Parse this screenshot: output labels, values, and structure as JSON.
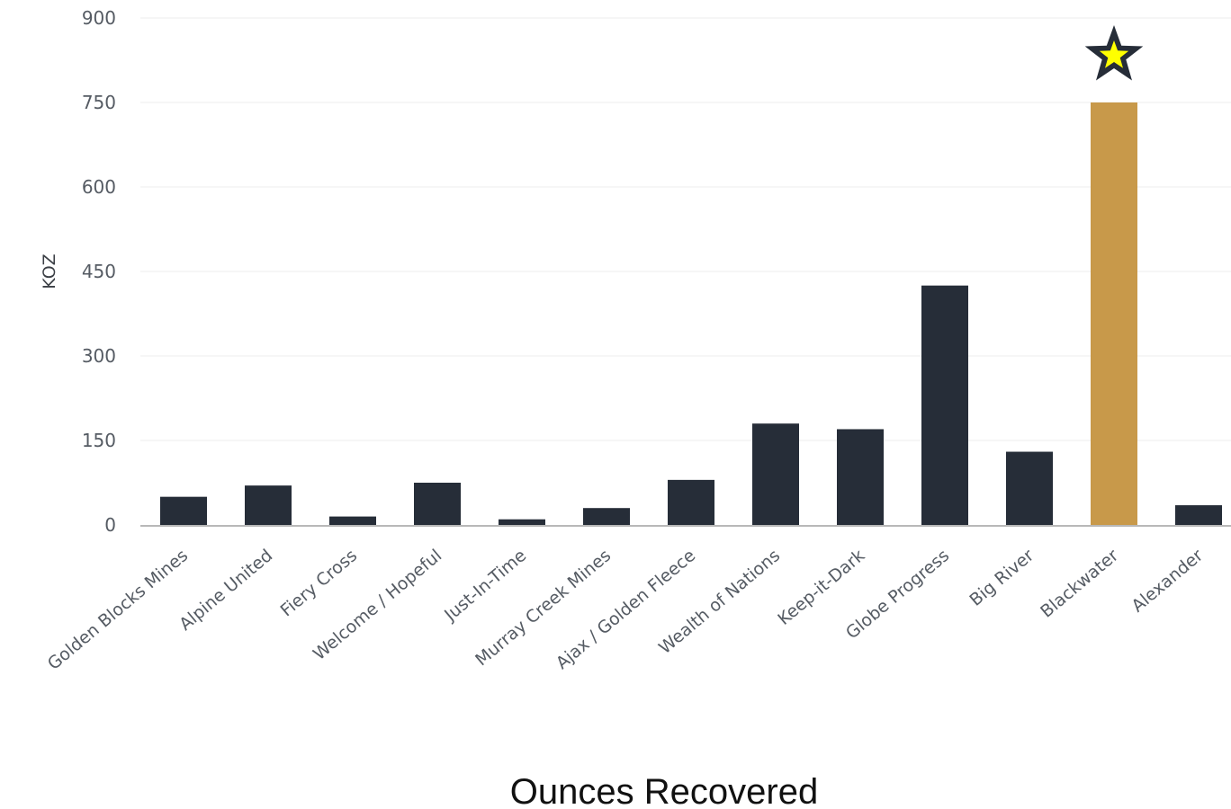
{
  "chart_data": {
    "type": "bar",
    "title": "",
    "xlabel": "Ounces Recovered",
    "ylabel": "KOZ",
    "ylim": [
      0,
      900
    ],
    "yticks": [
      "0",
      "150",
      "300",
      "450",
      "600",
      "750",
      "900"
    ],
    "grid": true,
    "categories": [
      "Golden Blocks Mines",
      "Alpine United",
      "Fiery Cross",
      "Welcome / Hopeful",
      "Just-In-Time",
      "Murray Creek Mines",
      "Ajax / Golden Fleece",
      "Wealth of Nations",
      "Keep-it-Dark",
      "Globe Progress",
      "Big River",
      "Blackwater",
      "Alexander"
    ],
    "values": [
      50,
      70,
      15,
      75,
      10,
      30,
      80,
      180,
      170,
      425,
      130,
      750,
      35
    ],
    "highlight": {
      "category": "Blackwater",
      "marker": "star-icon"
    },
    "colors": {
      "bar": "#262d38",
      "highlight_bar": "#c8994a",
      "star_fill": "#ffff00",
      "star_outline": "#262d38",
      "grid": "#ececec",
      "axis": "#b8b8b8"
    }
  }
}
